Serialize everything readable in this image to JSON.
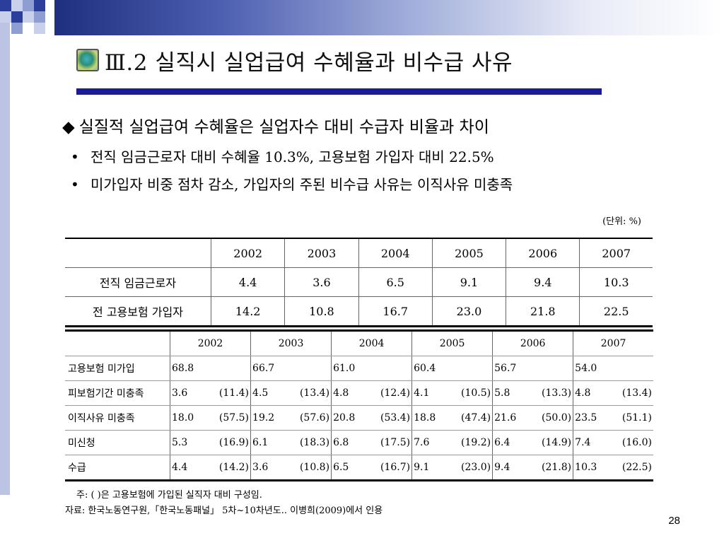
{
  "title": "Ⅲ.2 실직시 실업급여 수혜율과 비수급 사유",
  "main_bullet": "실질적 실업급여 수혜율은 실업자수 대비 수급자 비율과 차이",
  "sub_bullets": [
    "전직 임금근로자 대비 수혜율 10.3%, 고용보험 가입자 대비  22.5%",
    "미가입자 비중 점차 감소, 가입자의 주된 비수급 사유는 이직사유 미충족"
  ],
  "unit": "(단위:  %)",
  "table1": {
    "years": [
      "2002",
      "2003",
      "2004",
      "2005",
      "2006",
      "2007"
    ],
    "rows": [
      {
        "label": "전직 임금근로자",
        "values": [
          "4.4",
          "3.6",
          "6.5",
          "9.1",
          "9.4",
          "10.3"
        ]
      },
      {
        "label": "전 고용보험 가입자",
        "values": [
          "14.2",
          "10.8",
          "16.7",
          "23.0",
          "21.8",
          "22.5"
        ]
      }
    ]
  },
  "table2": {
    "years": [
      "2002",
      "2003",
      "2004",
      "2005",
      "2006",
      "2007"
    ],
    "rows": [
      {
        "label": "고용보험 미가입",
        "cells": [
          [
            "68.8",
            ""
          ],
          [
            "66.7",
            ""
          ],
          [
            "61.0",
            ""
          ],
          [
            "60.4",
            ""
          ],
          [
            "56.7",
            ""
          ],
          [
            "54.0",
            ""
          ]
        ]
      },
      {
        "label": "피보험기간 미충족",
        "cells": [
          [
            "3.6",
            "(11.4)"
          ],
          [
            "4.5",
            "(13.4)"
          ],
          [
            "4.8",
            "(12.4)"
          ],
          [
            "4.1",
            "(10.5)"
          ],
          [
            "5.8",
            "(13.3)"
          ],
          [
            "4.8",
            "(13.4)"
          ]
        ]
      },
      {
        "label": "이직사유 미충족",
        "cells": [
          [
            "18.0",
            "(57.5)"
          ],
          [
            "19.2",
            "(57.6)"
          ],
          [
            "20.8",
            "(53.4)"
          ],
          [
            "18.8",
            "(47.4)"
          ],
          [
            "21.6",
            "(50.0)"
          ],
          [
            "23.5",
            "(51.1)"
          ]
        ]
      },
      {
        "label": "미신청",
        "cells": [
          [
            "5.3",
            "(16.9)"
          ],
          [
            "6.1",
            "(18.3)"
          ],
          [
            "6.8",
            "(17.5)"
          ],
          [
            "7.6",
            "(19.2)"
          ],
          [
            "6.4",
            "(14.9)"
          ],
          [
            "7.4",
            "(16.0)"
          ]
        ]
      },
      {
        "label": "수급",
        "cells": [
          [
            "4.4",
            "(14.2)"
          ],
          [
            "3.6",
            "(10.8)"
          ],
          [
            "6.5",
            "(16.7)"
          ],
          [
            "9.1",
            "(23.0)"
          ],
          [
            "9.4",
            "(21.8)"
          ],
          [
            "10.3",
            "(22.5)"
          ]
        ]
      }
    ]
  },
  "note": "주: ( )은 고용보험에 가입된 실직자 대비 구성임.",
  "source": "자료: 한국노동연구원,「한국노동패널」 5차~10차년도.. 이병희(2009)에서 인용",
  "page_number": "28",
  "colors": {
    "accent": "#1a1aa0",
    "band_dark": "#1f2f80"
  }
}
